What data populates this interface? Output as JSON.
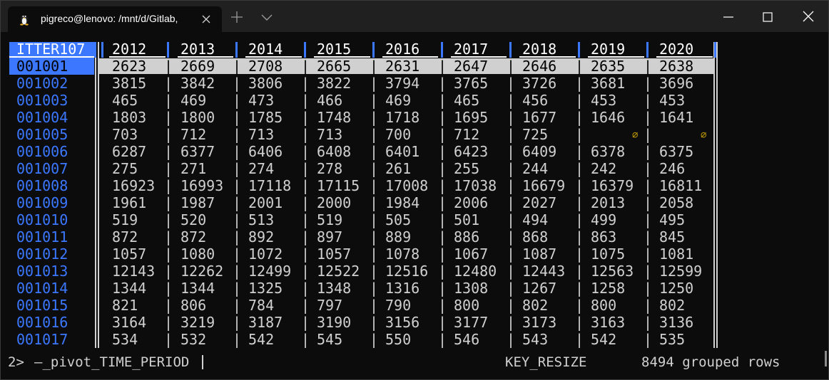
{
  "window": {
    "tab_title": "pigreco@lenovo: /mnt/d/Gitlab,",
    "tab_icon": "linux-tux-icon"
  },
  "table": {
    "key_header": "ITTER107",
    "year_headers": [
      "2012",
      "2013",
      "2014",
      "2015",
      "2016",
      "2017",
      "2018",
      "2019",
      "2020"
    ],
    "selected_row_index": 0,
    "null_symbol": "⌀",
    "rows": [
      {
        "key": "001001",
        "values": [
          "2623",
          "2669",
          "2708",
          "2665",
          "2631",
          "2647",
          "2646",
          "2635",
          "2638"
        ]
      },
      {
        "key": "001002",
        "values": [
          "3815",
          "3842",
          "3806",
          "3822",
          "3794",
          "3765",
          "3726",
          "3681",
          "3696"
        ]
      },
      {
        "key": "001003",
        "values": [
          "465",
          "469",
          "473",
          "466",
          "469",
          "465",
          "456",
          "453",
          "453"
        ]
      },
      {
        "key": "001004",
        "values": [
          "1803",
          "1800",
          "1785",
          "1748",
          "1718",
          "1695",
          "1677",
          "1646",
          "1641"
        ]
      },
      {
        "key": "001005",
        "values": [
          "703",
          "712",
          "713",
          "713",
          "700",
          "712",
          "725",
          null,
          null
        ]
      },
      {
        "key": "001006",
        "values": [
          "6287",
          "6377",
          "6406",
          "6408",
          "6401",
          "6423",
          "6409",
          "6378",
          "6375"
        ]
      },
      {
        "key": "001007",
        "values": [
          "275",
          "271",
          "274",
          "278",
          "261",
          "255",
          "244",
          "242",
          "246"
        ]
      },
      {
        "key": "001008",
        "values": [
          "16923",
          "16993",
          "17118",
          "17115",
          "17008",
          "17038",
          "16679",
          "16379",
          "16811"
        ]
      },
      {
        "key": "001009",
        "values": [
          "1961",
          "1987",
          "2001",
          "2000",
          "1984",
          "2006",
          "2027",
          "2013",
          "2058"
        ]
      },
      {
        "key": "001010",
        "values": [
          "519",
          "520",
          "513",
          "519",
          "505",
          "501",
          "494",
          "499",
          "495"
        ]
      },
      {
        "key": "001011",
        "values": [
          "872",
          "872",
          "892",
          "897",
          "889",
          "886",
          "868",
          "863",
          "845"
        ]
      },
      {
        "key": "001012",
        "values": [
          "1057",
          "1080",
          "1072",
          "1057",
          "1078",
          "1067",
          "1087",
          "1075",
          "1081"
        ]
      },
      {
        "key": "001013",
        "values": [
          "12143",
          "12262",
          "12499",
          "12522",
          "12516",
          "12480",
          "12443",
          "12563",
          "12599"
        ]
      },
      {
        "key": "001014",
        "values": [
          "1344",
          "1344",
          "1325",
          "1348",
          "1316",
          "1308",
          "1267",
          "1258",
          "1250"
        ]
      },
      {
        "key": "001015",
        "values": [
          "821",
          "806",
          "784",
          "797",
          "790",
          "800",
          "802",
          "800",
          "802"
        ]
      },
      {
        "key": "001016",
        "values": [
          "3164",
          "3219",
          "3187",
          "3190",
          "3156",
          "3177",
          "3173",
          "3163",
          "3136"
        ]
      },
      {
        "key": "001017",
        "values": [
          "534",
          "532",
          "542",
          "545",
          "550",
          "546",
          "543",
          "542",
          "535"
        ]
      }
    ]
  },
  "statusbar": {
    "prompt": "2> ",
    "command": "–_pivot_TIME_PERIOD",
    "event": "KEY_RESIZE",
    "rows_info": "8494 grouped rows"
  }
}
